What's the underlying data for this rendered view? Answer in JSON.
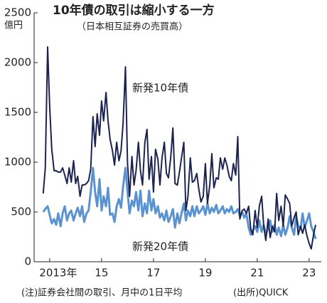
{
  "chart_data": {
    "type": "line",
    "title": "10年債の取引は縮小する一方",
    "subtitle": "（日本相互証券の売買高）",
    "y_unit": "億円",
    "note": "(注)証券会社間の取引、月中の1日平均",
    "source": "(出所)QUICK",
    "x": [
      2012.75,
      2012.83,
      2012.92,
      2013.0,
      2013.08,
      2013.17,
      2013.25,
      2013.33,
      2013.42,
      2013.5,
      2013.58,
      2013.67,
      2013.75,
      2013.83,
      2013.92,
      2014.0,
      2014.08,
      2014.17,
      2014.25,
      2014.33,
      2014.42,
      2014.5,
      2014.58,
      2014.67,
      2014.75,
      2014.83,
      2014.92,
      2015.0,
      2015.08,
      2015.17,
      2015.25,
      2015.33,
      2015.42,
      2015.5,
      2015.58,
      2015.67,
      2015.75,
      2015.83,
      2015.92,
      2016.0,
      2016.08,
      2016.17,
      2016.25,
      2016.33,
      2016.42,
      2016.5,
      2016.58,
      2016.67,
      2016.75,
      2016.83,
      2016.92,
      2017.0,
      2017.08,
      2017.17,
      2017.25,
      2017.33,
      2017.42,
      2017.5,
      2017.58,
      2017.67,
      2017.75,
      2017.83,
      2017.92,
      2018.0,
      2018.08,
      2018.17,
      2018.25,
      2018.33,
      2018.42,
      2018.5,
      2018.58,
      2018.67,
      2018.75,
      2018.83,
      2018.92,
      2019.0,
      2019.08,
      2019.17,
      2019.25,
      2019.33,
      2019.42,
      2019.5,
      2019.58,
      2019.67,
      2019.75,
      2019.83,
      2019.92,
      2020.0,
      2020.08,
      2020.17,
      2020.25,
      2020.33,
      2020.42,
      2020.5,
      2020.58,
      2020.67,
      2020.75,
      2020.83,
      2020.92,
      2021.0,
      2021.08,
      2021.17,
      2021.25,
      2021.33,
      2021.42,
      2021.5,
      2021.58,
      2021.67,
      2021.75,
      2021.83,
      2021.92,
      2022.0,
      2022.08,
      2022.17,
      2022.25,
      2022.33,
      2022.42,
      2022.5,
      2022.58,
      2022.67,
      2022.75,
      2022.83,
      2022.92,
      2023.0,
      2023.08,
      2023.17,
      2023.25
    ],
    "series": [
      {
        "name": "新発10年債",
        "color": "#1c2350",
        "values": [
          686,
          943,
          2157,
          1557,
          1129,
          914,
          914,
          900,
          900,
          943,
          871,
          786,
          943,
          800,
          1014,
          786,
          857,
          657,
          771,
          771,
          786,
          814,
          929,
          1457,
          1157,
          1486,
          1271,
          1614,
          1414,
          1700,
          1414,
          1229,
          1114,
          971,
          1200,
          1014,
          1114,
          1400,
          1957,
          986,
          657,
          1057,
          771,
          914,
          1200,
          914,
          771,
          1200,
          1329,
          829,
          1057,
          700,
          1129,
          1029,
          771,
          1043,
          1200,
          886,
          843,
          1057,
          1343,
          786,
          771,
          900,
          1043,
          1200,
          514,
          657,
          1043,
          800,
          814,
          886,
          729,
          600,
          657,
          986,
          586,
          771,
          1086,
          743,
          843,
          829,
          1043,
          929,
          1043,
          971,
          857,
          814,
          986,
          871,
          1257,
          429,
          514,
          529,
          486,
          557,
          329,
          271,
          514,
          343,
          557,
          657,
          357,
          214,
          429,
          243,
          357,
          300,
          686,
          414,
          557,
          357,
          671,
          629,
          586,
          357,
          443,
          500,
          271,
          357,
          286,
          371,
          257,
          186,
          129,
          271,
          371
        ]
      },
      {
        "name": "新発20年債",
        "color": "#5b93d0",
        "values": [
          500,
          529,
          557,
          471,
          386,
          429,
          371,
          486,
          357,
          486,
          557,
          414,
          486,
          514,
          414,
          486,
          543,
          457,
          557,
          400,
          486,
          514,
          700,
          943,
          700,
          557,
          829,
          514,
          657,
          557,
          743,
          471,
          486,
          400,
          557,
          629,
          543,
          757,
          943,
          700,
          486,
          614,
          557,
          700,
          514,
          714,
          457,
          586,
          486,
          714,
          514,
          629,
          486,
          557,
          443,
          486,
          414,
          514,
          400,
          457,
          529,
          343,
          486,
          386,
          486,
          586,
          414,
          514,
          457,
          557,
          457,
          557,
          486,
          514,
          557,
          471,
          586,
          486,
          543,
          500,
          571,
          486,
          514,
          557,
          486,
          529,
          500,
          557,
          486,
          500,
          529,
          457,
          500,
          443,
          486,
          343,
          271,
          314,
          357,
          300,
          414,
          300,
          371,
          271,
          343,
          414,
          300,
          371,
          271,
          343,
          257,
          371,
          271,
          343,
          457,
          343,
          271,
          457,
          357,
          329,
          486,
          343,
          414,
          486,
          357,
          300,
          229
        ]
      }
    ],
    "xlim": [
      2012.4,
      2023.47
    ],
    "xticks": [
      {
        "value": 2013,
        "label": "2013年"
      },
      2015,
      2017,
      2019,
      2021,
      2023
    ],
    "xtick_labels": [
      "2013年",
      "15",
      "17",
      "19",
      "21",
      "23"
    ],
    "ylim": [
      0,
      2500
    ],
    "yticks": [
      0,
      500,
      1000,
      1500,
      2000,
      2500
    ]
  }
}
